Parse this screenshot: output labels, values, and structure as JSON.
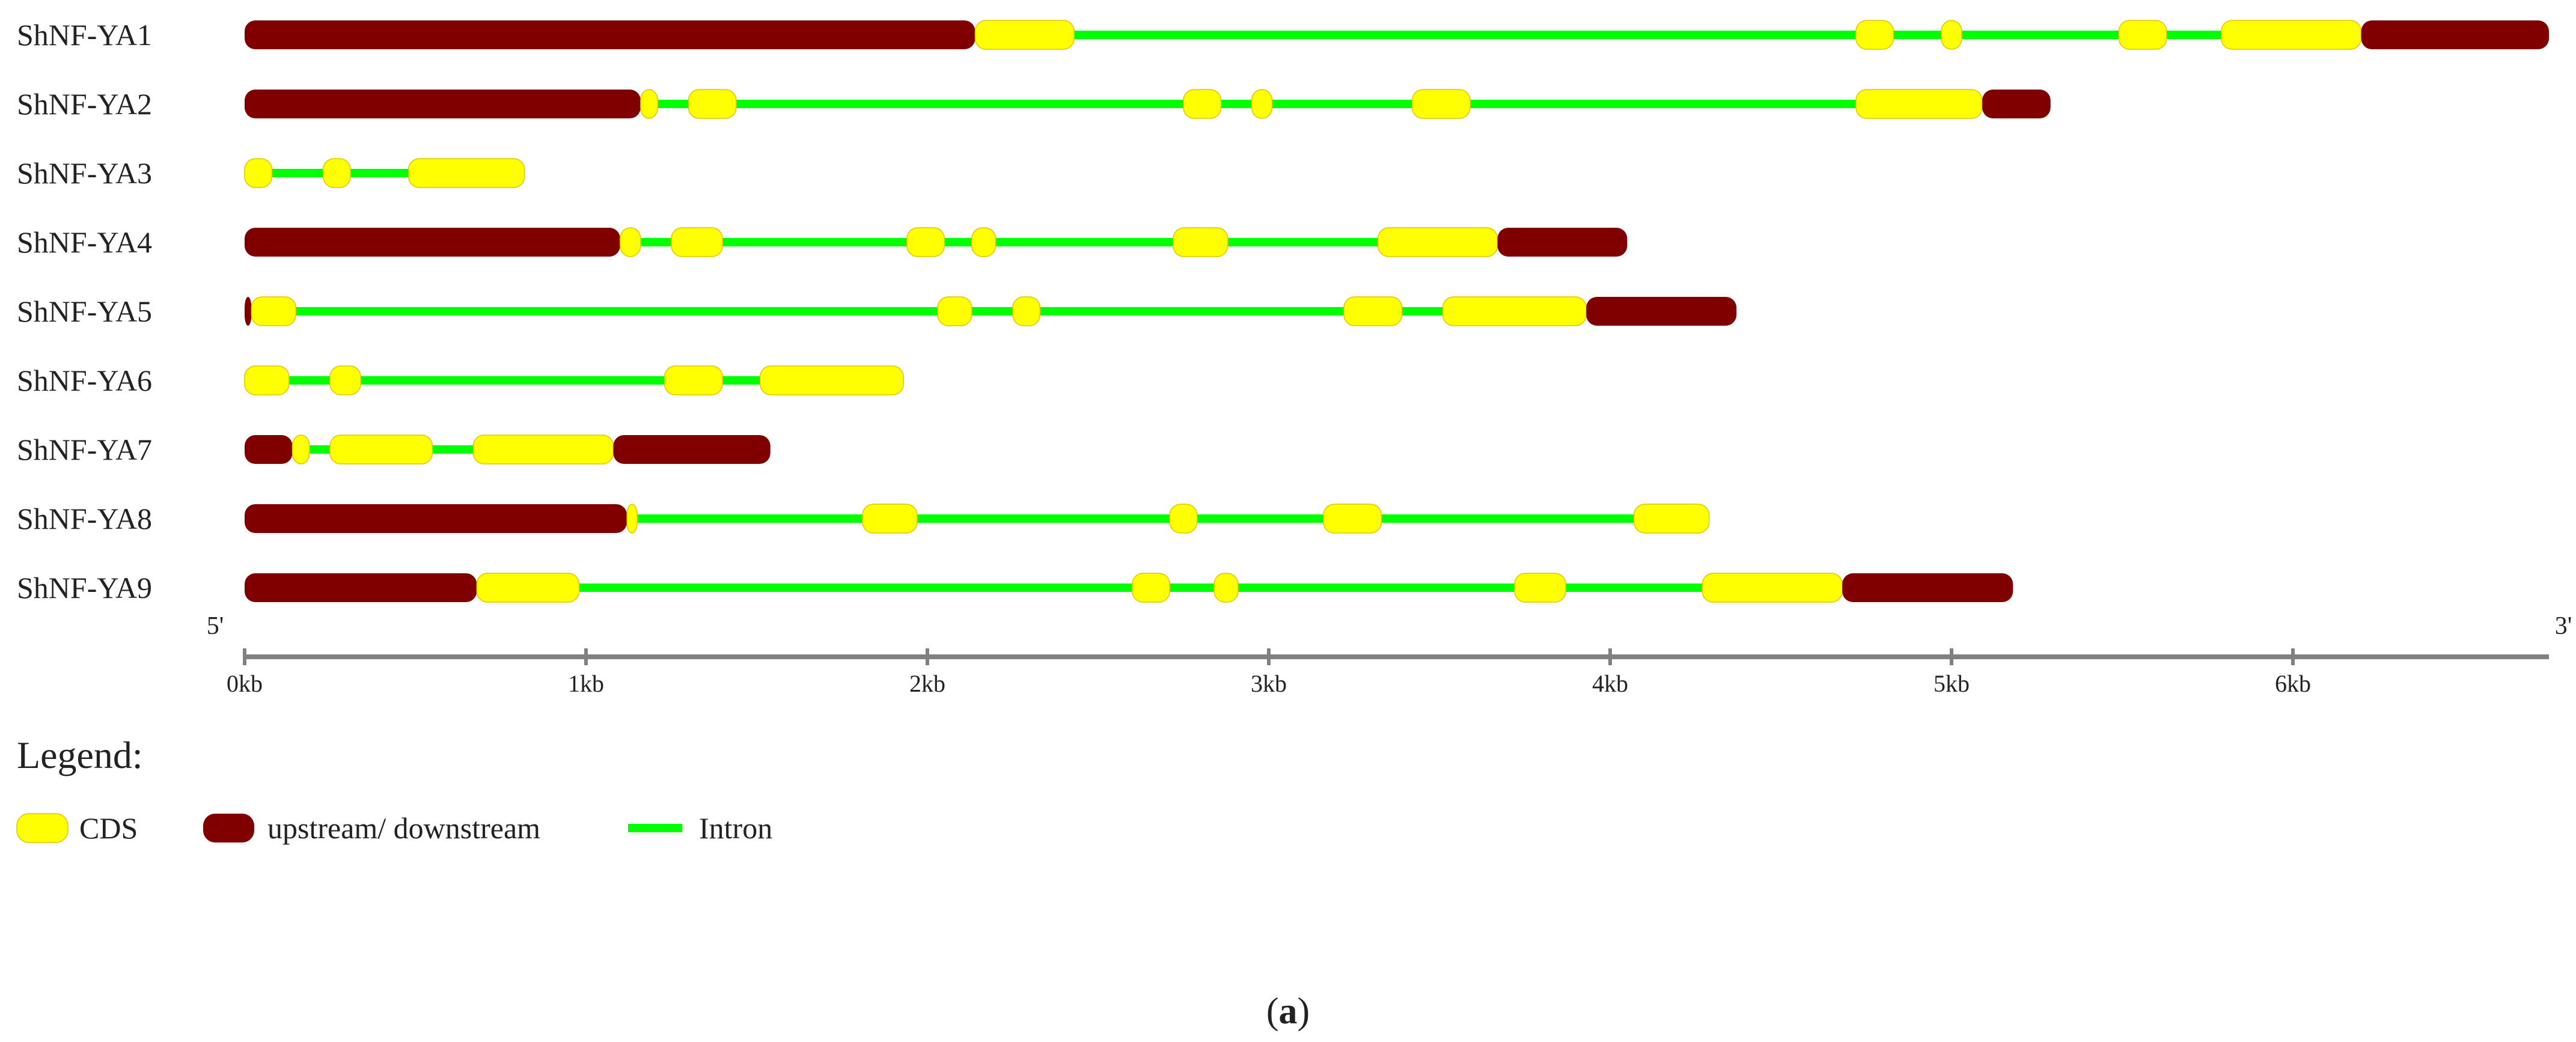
{
  "colors": {
    "cds": "#ffff00",
    "utr": "#800000",
    "intron": "#00ff00",
    "axis": "#808080",
    "cds_stroke": "#e0c400"
  },
  "axis": {
    "unit": "kb",
    "range": [
      0,
      6.75
    ],
    "ticks": [
      {
        "value": 0,
        "label": "0kb"
      },
      {
        "value": 1,
        "label": "1kb"
      },
      {
        "value": 2,
        "label": "2kb"
      },
      {
        "value": 3,
        "label": "3kb"
      },
      {
        "value": 4,
        "label": "4kb"
      },
      {
        "value": 5,
        "label": "5kb"
      },
      {
        "value": 6,
        "label": "6kb"
      }
    ],
    "five_prime": "5'",
    "three_prime": "3'"
  },
  "genes": [
    {
      "name": "ShNF-YA1",
      "length": 6.75,
      "features": [
        {
          "type": "utr",
          "start": 0,
          "end": 2.14
        },
        {
          "type": "cds",
          "start": 2.14,
          "end": 2.43
        },
        {
          "type": "cds",
          "start": 4.72,
          "end": 4.83
        },
        {
          "type": "cds",
          "start": 4.97,
          "end": 5.03
        },
        {
          "type": "cds",
          "start": 5.49,
          "end": 5.63
        },
        {
          "type": "cds",
          "start": 5.79,
          "end": 6.2
        },
        {
          "type": "utr",
          "start": 6.2,
          "end": 6.75
        }
      ]
    },
    {
      "name": "ShNF-YA2",
      "length": 5.29,
      "features": [
        {
          "type": "utr",
          "start": 0,
          "end": 1.16
        },
        {
          "type": "cds",
          "start": 1.16,
          "end": 1.21
        },
        {
          "type": "cds",
          "start": 1.3,
          "end": 1.44
        },
        {
          "type": "cds",
          "start": 2.75,
          "end": 2.86
        },
        {
          "type": "cds",
          "start": 2.95,
          "end": 3.01
        },
        {
          "type": "cds",
          "start": 3.42,
          "end": 3.59
        },
        {
          "type": "cds",
          "start": 4.72,
          "end": 5.09
        },
        {
          "type": "utr",
          "start": 5.09,
          "end": 5.29
        }
      ]
    },
    {
      "name": "ShNF-YA3",
      "length": 0.82,
      "features": [
        {
          "type": "cds",
          "start": 0,
          "end": 0.08
        },
        {
          "type": "cds",
          "start": 0.23,
          "end": 0.31
        },
        {
          "type": "cds",
          "start": 0.48,
          "end": 0.82
        }
      ]
    },
    {
      "name": "ShNF-YA4",
      "length": 4.05,
      "features": [
        {
          "type": "utr",
          "start": 0,
          "end": 1.1
        },
        {
          "type": "cds",
          "start": 1.1,
          "end": 1.16
        },
        {
          "type": "cds",
          "start": 1.25,
          "end": 1.4
        },
        {
          "type": "cds",
          "start": 1.94,
          "end": 2.05
        },
        {
          "type": "cds",
          "start": 2.13,
          "end": 2.2
        },
        {
          "type": "cds",
          "start": 2.72,
          "end": 2.88
        },
        {
          "type": "cds",
          "start": 3.32,
          "end": 3.67
        },
        {
          "type": "utr",
          "start": 3.67,
          "end": 4.05
        }
      ]
    },
    {
      "name": "ShNF-YA5",
      "length": 4.37,
      "features": [
        {
          "type": "utr",
          "start": 0,
          "end": 0.02
        },
        {
          "type": "cds",
          "start": 0.02,
          "end": 0.15
        },
        {
          "type": "cds",
          "start": 2.03,
          "end": 2.13
        },
        {
          "type": "cds",
          "start": 2.25,
          "end": 2.33
        },
        {
          "type": "cds",
          "start": 3.22,
          "end": 3.39
        },
        {
          "type": "cds",
          "start": 3.51,
          "end": 3.93
        },
        {
          "type": "utr",
          "start": 3.93,
          "end": 4.37
        }
      ]
    },
    {
      "name": "ShNF-YA6",
      "length": 1.93,
      "features": [
        {
          "type": "cds",
          "start": 0,
          "end": 0.13
        },
        {
          "type": "cds",
          "start": 0.25,
          "end": 0.34
        },
        {
          "type": "cds",
          "start": 1.23,
          "end": 1.4
        },
        {
          "type": "cds",
          "start": 1.51,
          "end": 1.93
        }
      ]
    },
    {
      "name": "ShNF-YA7",
      "length": 1.54,
      "features": [
        {
          "type": "utr",
          "start": 0,
          "end": 0.14
        },
        {
          "type": "cds",
          "start": 0.14,
          "end": 0.19
        },
        {
          "type": "cds",
          "start": 0.25,
          "end": 0.55
        },
        {
          "type": "cds",
          "start": 0.67,
          "end": 1.08
        },
        {
          "type": "utr",
          "start": 1.08,
          "end": 1.54
        }
      ]
    },
    {
      "name": "ShNF-YA8",
      "length": 4.29,
      "features": [
        {
          "type": "utr",
          "start": 0,
          "end": 1.12
        },
        {
          "type": "cds",
          "start": 1.12,
          "end": 1.15
        },
        {
          "type": "cds",
          "start": 1.81,
          "end": 1.97
        },
        {
          "type": "cds",
          "start": 2.71,
          "end": 2.79
        },
        {
          "type": "cds",
          "start": 3.16,
          "end": 3.33
        },
        {
          "type": "cds",
          "start": 4.07,
          "end": 4.29
        }
      ]
    },
    {
      "name": "ShNF-YA9",
      "length": 5.18,
      "features": [
        {
          "type": "utr",
          "start": 0,
          "end": 0.68
        },
        {
          "type": "cds",
          "start": 0.68,
          "end": 0.98
        },
        {
          "type": "cds",
          "start": 2.6,
          "end": 2.71
        },
        {
          "type": "cds",
          "start": 2.84,
          "end": 2.91
        },
        {
          "type": "cds",
          "start": 3.72,
          "end": 3.87
        },
        {
          "type": "cds",
          "start": 4.27,
          "end": 4.68
        },
        {
          "type": "utr",
          "start": 4.68,
          "end": 5.18
        }
      ]
    }
  ],
  "legend": {
    "title": "Legend:",
    "items": [
      {
        "type": "cds",
        "label": "CDS"
      },
      {
        "type": "utr",
        "label": "upstream/ downstream"
      },
      {
        "type": "intron",
        "label": "Intron"
      }
    ]
  },
  "caption": {
    "open": "(",
    "letter": "a",
    "close": ")"
  }
}
